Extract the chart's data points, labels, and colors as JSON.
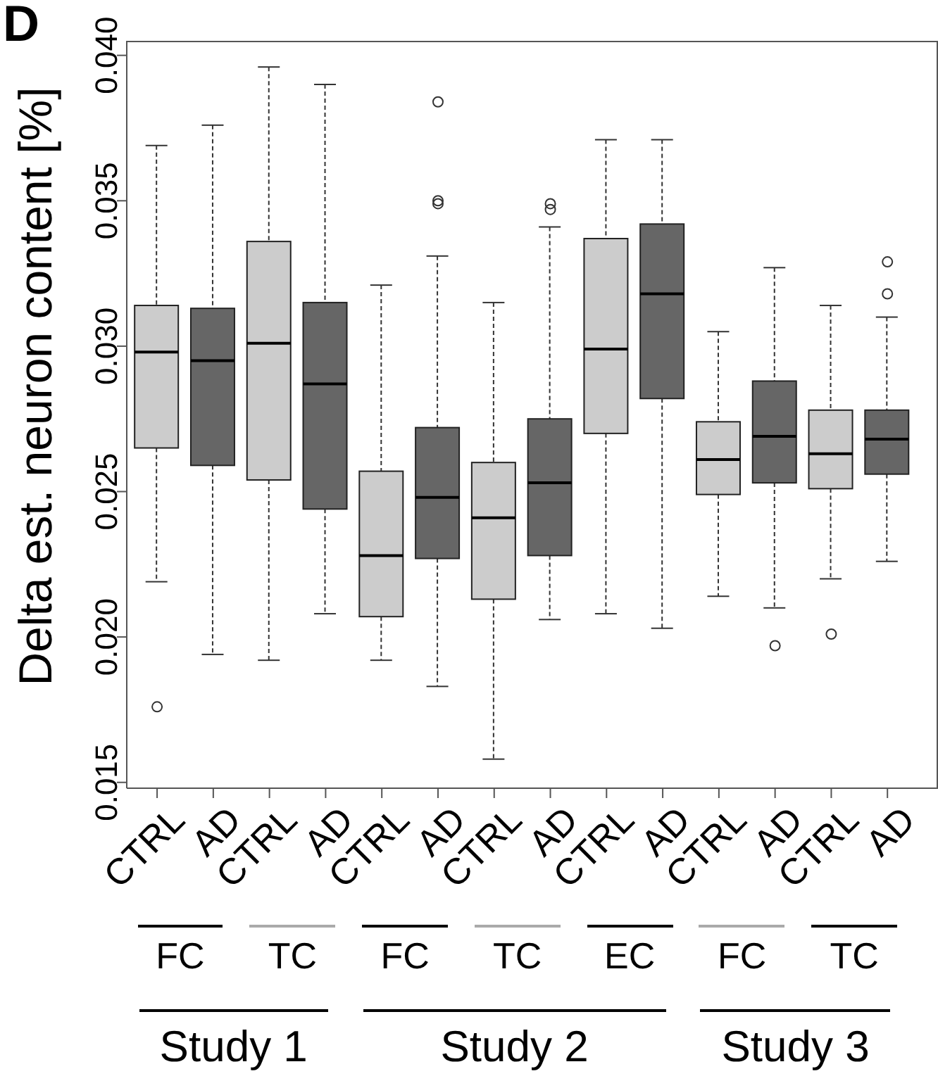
{
  "chart_data": {
    "type": "box",
    "ylabel": "Delta est. neuron content [%]",
    "categories": [
      "CTRL",
      "AD",
      "CTRL",
      "AD",
      "CTRL",
      "AD",
      "CTRL",
      "AD",
      "CTRL",
      "AD",
      "CTRL",
      "AD",
      "CTRL",
      "AD"
    ],
    "colors": [
      "#cccccc",
      "#666666",
      "#cccccc",
      "#666666",
      "#cccccc",
      "#666666",
      "#cccccc",
      "#666666",
      "#cccccc",
      "#666666",
      "#cccccc",
      "#666666",
      "#cccccc",
      "#666666"
    ],
    "boxes": [
      {
        "low": 0.0219,
        "q1": 0.0265,
        "median": 0.0298,
        "q3": 0.0314,
        "high": 0.0369,
        "outliers": [
          0.0176
        ]
      },
      {
        "low": 0.0194,
        "q1": 0.0259,
        "median": 0.0295,
        "q3": 0.0313,
        "high": 0.0376
      },
      {
        "low": 0.0192,
        "q1": 0.0254,
        "median": 0.0301,
        "q3": 0.0336,
        "high": 0.0396
      },
      {
        "low": 0.0208,
        "q1": 0.0244,
        "median": 0.0287,
        "q3": 0.0315,
        "high": 0.039
      },
      {
        "low": 0.0192,
        "q1": 0.0207,
        "median": 0.0228,
        "q3": 0.0257,
        "high": 0.0321
      },
      {
        "low": 0.0183,
        "q1": 0.0227,
        "median": 0.0248,
        "q3": 0.0272,
        "high": 0.0331,
        "outliers": [
          0.0384,
          0.035,
          0.0349
        ]
      },
      {
        "low": 0.0158,
        "q1": 0.0213,
        "median": 0.0241,
        "q3": 0.026,
        "high": 0.0315
      },
      {
        "low": 0.0206,
        "q1": 0.0228,
        "median": 0.0253,
        "q3": 0.0275,
        "high": 0.0341,
        "outliers": [
          0.0349,
          0.0347
        ]
      },
      {
        "low": 0.0208,
        "q1": 0.027,
        "median": 0.0299,
        "q3": 0.0337,
        "high": 0.0371
      },
      {
        "low": 0.0203,
        "q1": 0.0282,
        "median": 0.0318,
        "q3": 0.0342,
        "high": 0.0371
      },
      {
        "low": 0.0214,
        "q1": 0.0249,
        "median": 0.0261,
        "q3": 0.0274,
        "high": 0.0305
      },
      {
        "low": 0.021,
        "q1": 0.0253,
        "median": 0.0269,
        "q3": 0.0288,
        "high": 0.0327,
        "outliers": [
          0.0197
        ]
      },
      {
        "low": 0.022,
        "q1": 0.0251,
        "median": 0.0263,
        "q3": 0.0278,
        "high": 0.0314,
        "outliers": [
          0.0201
        ]
      },
      {
        "low": 0.0226,
        "q1": 0.0256,
        "median": 0.0268,
        "q3": 0.0278,
        "high": 0.031,
        "outliers": [
          0.0329,
          0.0318
        ]
      }
    ],
    "ylim": [
      0.0148,
      0.0405
    ],
    "yticks": [
      {
        "value": 0.015,
        "label": "0.015"
      },
      {
        "value": 0.02,
        "label": "0.020"
      },
      {
        "value": 0.025,
        "label": "0.025"
      },
      {
        "value": 0.03,
        "label": "0.030"
      },
      {
        "value": 0.035,
        "label": "0.035"
      },
      {
        "value": 0.04,
        "label": "0.040"
      }
    ],
    "annotations": [
      "FC",
      "TC",
      "FC",
      "TC",
      "EC",
      "FC",
      "TC",
      "Study 1",
      "Study 2",
      "Study 3",
      "D"
    ]
  }
}
